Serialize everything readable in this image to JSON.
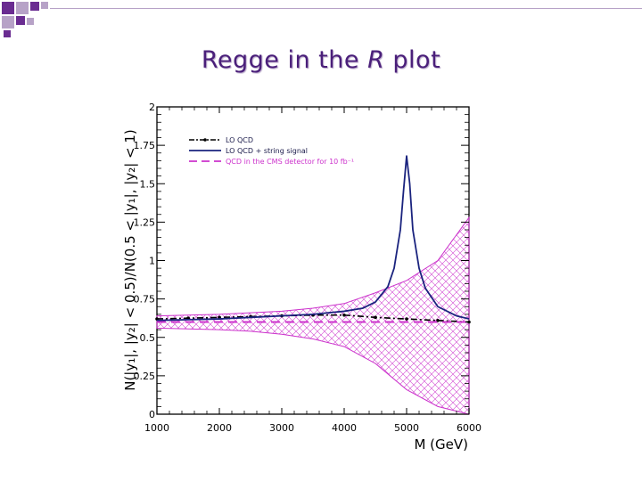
{
  "slide": {
    "title_prefix": "Regge in the ",
    "title_italic": "R",
    "title_suffix": " plot",
    "accent_colors": [
      "#6a2c91",
      "#b7a2c7"
    ]
  },
  "chart_data": {
    "type": "line",
    "title": "",
    "xlabel": "M (GeV)",
    "ylabel": "N(|y₁|, |y₂| < 0.5)/N(0.5 < |y₁|, |y₂| < 1)",
    "xlim": [
      1000,
      6000
    ],
    "ylim": [
      0,
      2
    ],
    "xticks": [
      "1000",
      "2000",
      "3000",
      "4000",
      "5000",
      "6000"
    ],
    "yticks": [
      "0",
      "0.25",
      "0.5",
      "0.75",
      "1",
      "1.25",
      "1.5",
      "1.75",
      "2"
    ],
    "legend_position": "top-left",
    "series": [
      {
        "name": "LO QCD",
        "color": "#000000",
        "style": "dash-dot-marker",
        "x": [
          1000,
          1500,
          2000,
          2500,
          3000,
          3500,
          4000,
          4500,
          5000,
          5500,
          6000
        ],
        "y": [
          0.62,
          0.625,
          0.63,
          0.635,
          0.64,
          0.645,
          0.645,
          0.63,
          0.62,
          0.61,
          0.6
        ]
      },
      {
        "name": "LO QCD + string signal",
        "color": "#1a237e",
        "style": "solid",
        "x": [
          1000,
          1500,
          2000,
          2500,
          3000,
          3500,
          4000,
          4300,
          4500,
          4700,
          4800,
          4900,
          4950,
          5000,
          5050,
          5100,
          5200,
          5300,
          5500,
          5800,
          6000
        ],
        "y": [
          0.61,
          0.615,
          0.62,
          0.63,
          0.64,
          0.65,
          0.67,
          0.69,
          0.73,
          0.83,
          0.95,
          1.2,
          1.45,
          1.68,
          1.5,
          1.2,
          0.95,
          0.82,
          0.7,
          0.64,
          0.62
        ]
      },
      {
        "name": "QCD in the CMS detector for 10 fb⁻¹",
        "color": "#cc33cc",
        "style": "dashed-band",
        "x": [
          1000,
          1500,
          2000,
          2500,
          3000,
          3500,
          4000,
          4500,
          5000,
          5500,
          6000
        ],
        "y": [
          0.6,
          0.6,
          0.6,
          0.6,
          0.6,
          0.6,
          0.6,
          0.6,
          0.6,
          0.6,
          0.6
        ],
        "band_low": [
          0.56,
          0.555,
          0.55,
          0.54,
          0.52,
          0.49,
          0.44,
          0.33,
          0.16,
          0.05,
          0.0
        ],
        "band_high": [
          0.64,
          0.645,
          0.65,
          0.66,
          0.67,
          0.69,
          0.72,
          0.79,
          0.87,
          1.0,
          1.28
        ]
      }
    ]
  }
}
